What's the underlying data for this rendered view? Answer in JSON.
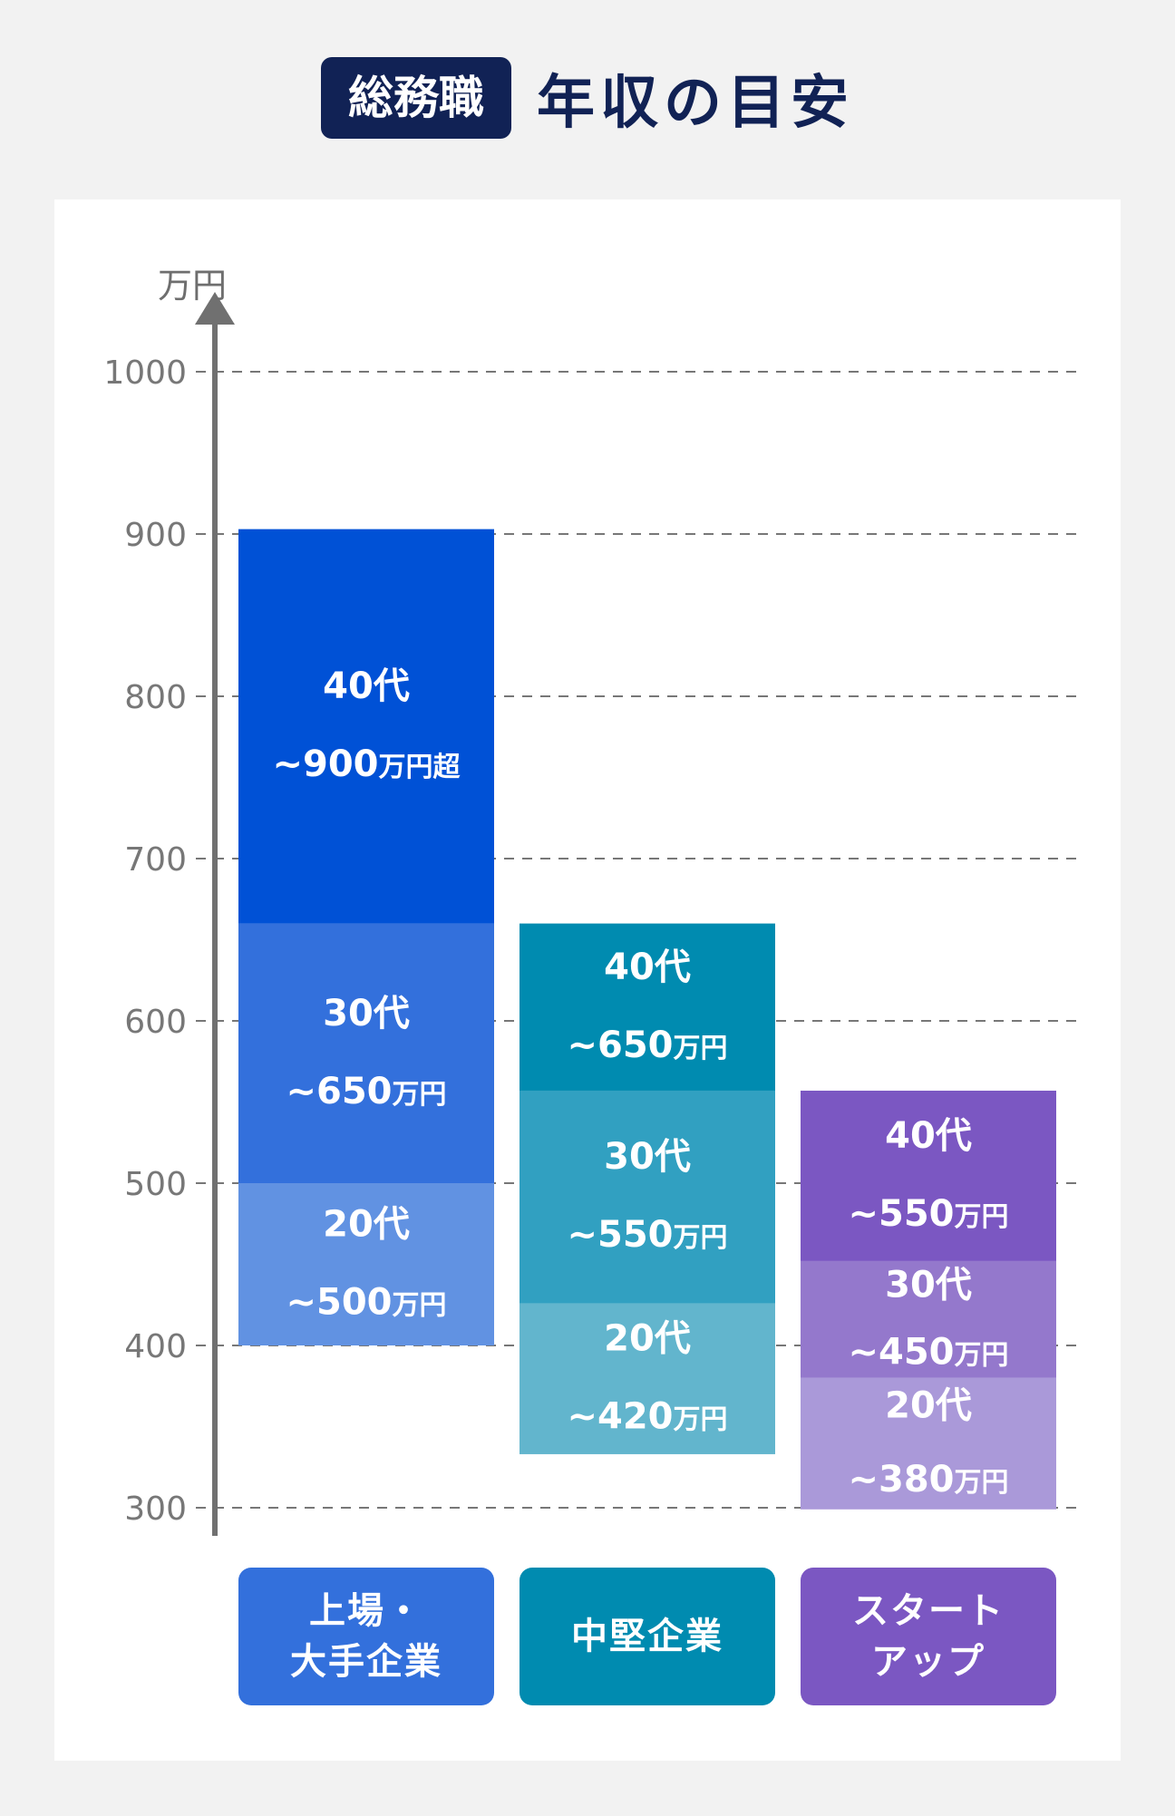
{
  "header": {
    "badge": "総務職",
    "title": "年収の目安"
  },
  "chart_data": {
    "type": "bar",
    "stacked": true,
    "y_unit": "万円",
    "ylim": [
      300,
      1000
    ],
    "yticks": [
      300,
      400,
      500,
      600,
      700,
      800,
      900,
      1000
    ],
    "grid": true,
    "categories": [
      {
        "label": "上場・\n大手企業",
        "color": "#3370dc"
      },
      {
        "label": "中堅企業",
        "color": "#008bb0"
      },
      {
        "label": "スタート\nアップ",
        "color": "#7b57c2"
      }
    ],
    "bars": [
      {
        "base": 400,
        "segments": [
          {
            "age": "20代",
            "amount": "~500",
            "suffix": "万円",
            "top": 500,
            "color": "#6192e2"
          },
          {
            "age": "30代",
            "amount": "~650",
            "suffix": "万円",
            "top": 660,
            "color": "#3370dc"
          },
          {
            "age": "40代",
            "amount": "~900",
            "suffix": "万円超",
            "top": 903,
            "color": "#0051d6"
          }
        ]
      },
      {
        "base": 333,
        "segments": [
          {
            "age": "20代",
            "amount": "~420",
            "suffix": "万円",
            "top": 426,
            "color": "#62b5cd"
          },
          {
            "age": "30代",
            "amount": "~550",
            "suffix": "万円",
            "top": 557,
            "color": "#31a0c1"
          },
          {
            "age": "40代",
            "amount": "~650",
            "suffix": "万円",
            "top": 660,
            "color": "#008bb0"
          }
        ]
      },
      {
        "base": 299,
        "segments": [
          {
            "age": "20代",
            "amount": "~380",
            "suffix": "万円",
            "top": 380,
            "color": "#aa99d9"
          },
          {
            "age": "30代",
            "amount": "~450",
            "suffix": "万円",
            "top": 452,
            "color": "#9478cc"
          },
          {
            "age": "40代",
            "amount": "~550",
            "suffix": "万円",
            "top": 557,
            "color": "#7b57c2"
          }
        ]
      }
    ]
  }
}
